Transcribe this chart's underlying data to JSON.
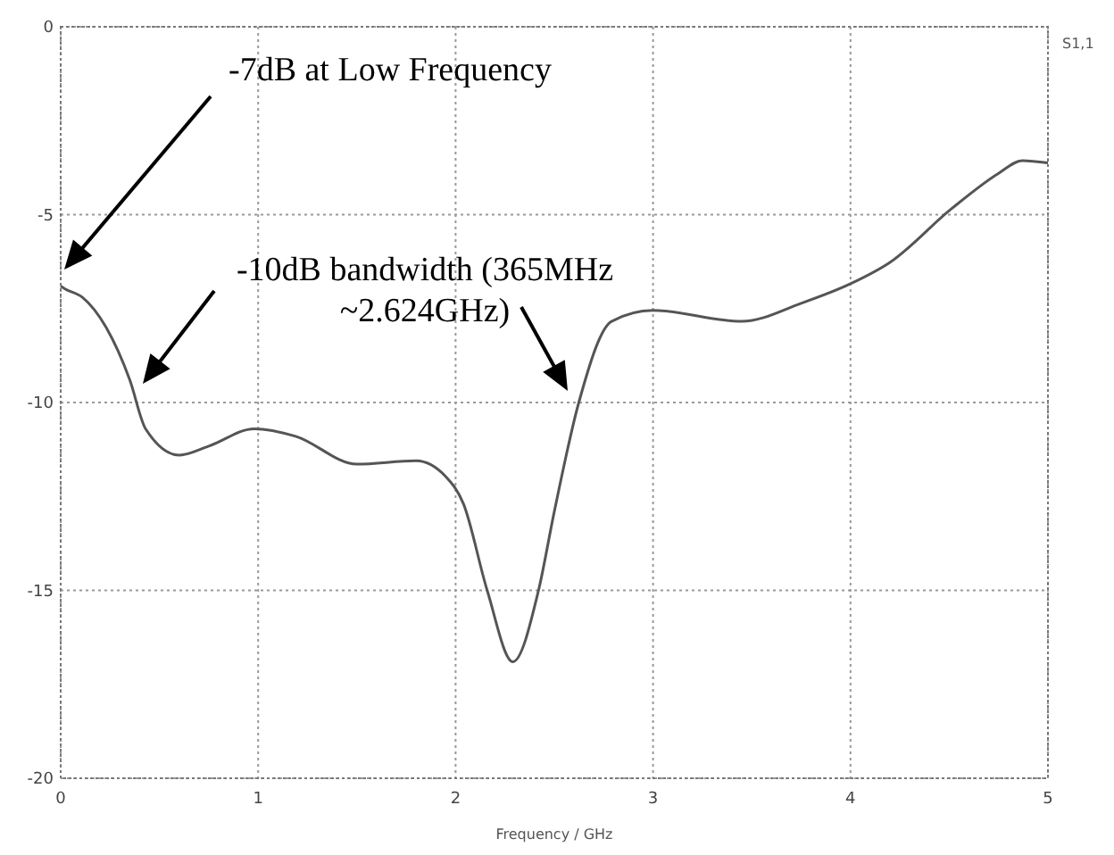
{
  "chart_data": {
    "type": "line",
    "xlabel": "Frequency / GHz",
    "x": [
      0,
      0.02,
      0.11,
      0.23,
      0.35,
      0.43,
      0.6,
      0.75,
      0.98,
      1.19,
      1.5,
      1.8,
      1.95,
      2.04,
      2.16,
      2.29,
      2.42,
      2.5,
      2.624,
      2.79,
      3.0,
      3.45,
      3.75,
      4.0,
      4.2,
      4.51,
      4.75,
      4.87,
      5
    ],
    "series": [
      {
        "name": "S1,1",
        "color": "#555555",
        "values": [
          -6.9,
          -6.97,
          -7.2,
          -8.0,
          -9.4,
          -10.7,
          -11.4,
          -11.16,
          -10.7,
          -10.9,
          -11.64,
          -11.55,
          -11.97,
          -12.7,
          -15,
          -16.9,
          -15,
          -12.9,
          -10,
          -7.84,
          -7.55,
          -7.84,
          -7.36,
          -6.84,
          -6.27,
          -4.85,
          -3.9,
          -3.56,
          -3.62
        ]
      }
    ],
    "xlim": [
      0,
      5
    ],
    "xticks": [
      0,
      1,
      2,
      3,
      4,
      5
    ],
    "ylim": [
      -20,
      0
    ],
    "yticks": [
      0,
      -5,
      -10,
      -15,
      -20
    ],
    "grid": true,
    "marker": "none",
    "line_style": "solid",
    "annotations": [
      "-7dB at Low Frequency",
      "-10dB bandwidth (365MHz ~2.624GHz)"
    ]
  }
}
